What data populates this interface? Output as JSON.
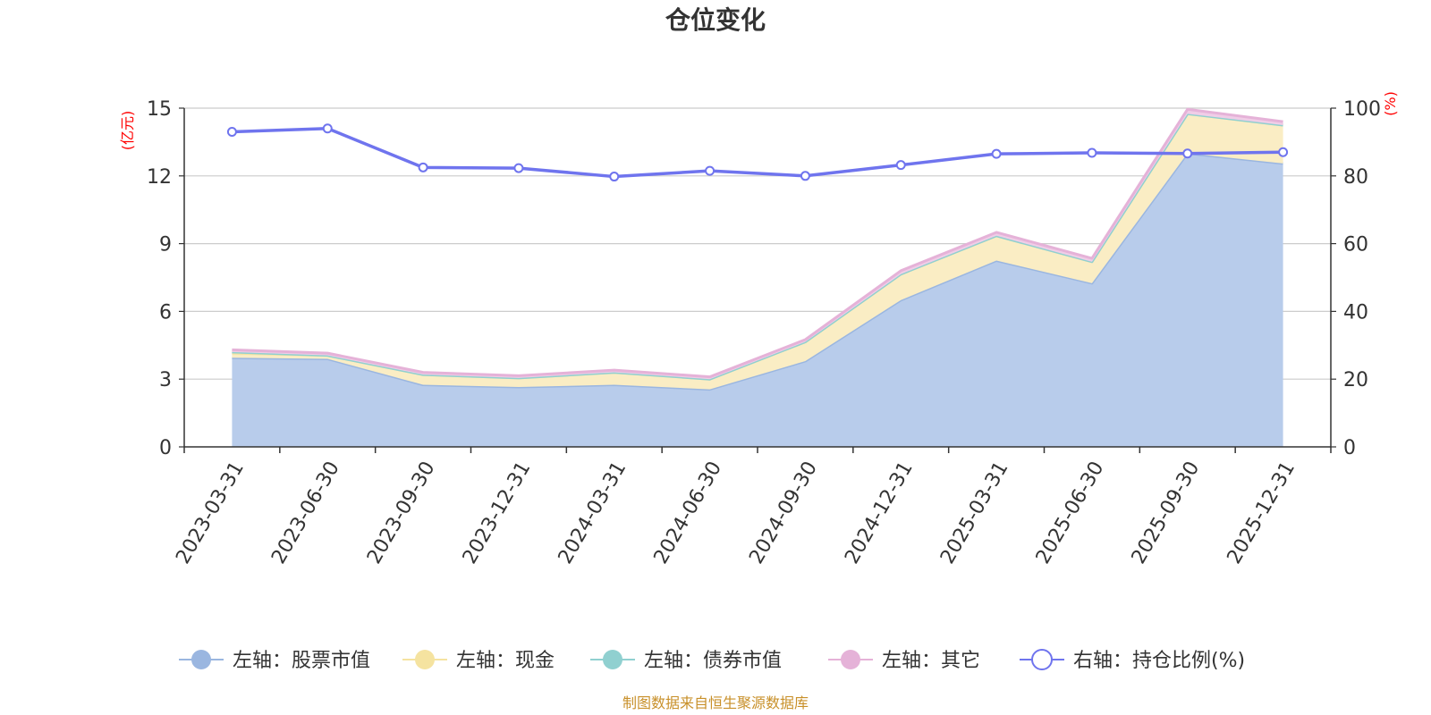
{
  "chart_data": {
    "type": "area",
    "title": "仓位变化",
    "source": "制图数据来自恒生聚源数据库",
    "left_axis": {
      "unit": "(亿元)",
      "ticks": [
        "0",
        "3",
        "6",
        "9",
        "12",
        "15"
      ],
      "range": [
        0,
        15
      ]
    },
    "right_axis": {
      "unit": "(%)",
      "ticks": [
        "0",
        "20",
        "40",
        "60",
        "80",
        "100"
      ],
      "range": [
        0,
        100
      ]
    },
    "categories": [
      "2023-03-31",
      "2023-06-30",
      "2023-09-30",
      "2023-12-31",
      "2024-03-31",
      "2024-06-30",
      "2024-09-30",
      "2024-12-31",
      "2025-03-31",
      "2025-06-30",
      "2025-09-30",
      "2025-12-31"
    ],
    "series": [
      {
        "name": "左轴：股票市值",
        "axis": "left",
        "stack": true,
        "color": "#9ab6e0",
        "fill": "#b8cceb",
        "values": [
          3.95,
          3.9,
          2.75,
          2.65,
          2.75,
          2.55,
          3.8,
          6.5,
          8.25,
          7.25,
          13.0,
          12.55
        ]
      },
      {
        "name": "左轴：现金",
        "axis": "left",
        "stack": true,
        "color": "#f5e3a0",
        "fill": "#faedc4",
        "values": [
          0.2,
          0.15,
          0.45,
          0.4,
          0.55,
          0.45,
          0.85,
          1.15,
          1.1,
          0.95,
          1.75,
          1.7
        ]
      },
      {
        "name": "左轴：债券市值",
        "axis": "left",
        "stack": true,
        "color": "#90d0d0",
        "fill": "#b5e0e0",
        "values": [
          0.05,
          0.0,
          0.0,
          0.0,
          0.0,
          0.0,
          0.0,
          0.0,
          0.0,
          0.0,
          0.0,
          0.0
        ]
      },
      {
        "name": "左轴：其它",
        "axis": "left",
        "stack": true,
        "color": "#e5b2d8",
        "fill": "#f0cde7",
        "values": [
          0.1,
          0.1,
          0.1,
          0.1,
          0.1,
          0.1,
          0.1,
          0.15,
          0.15,
          0.15,
          0.2,
          0.15
        ]
      },
      {
        "name": "右轴：持仓比例(%)",
        "axis": "right",
        "stack": false,
        "color": "#6f74ee",
        "values": [
          93.0,
          94.0,
          82.5,
          82.3,
          79.8,
          81.5,
          80.0,
          83.2,
          86.5,
          86.8,
          86.6,
          87.0
        ]
      }
    ]
  }
}
